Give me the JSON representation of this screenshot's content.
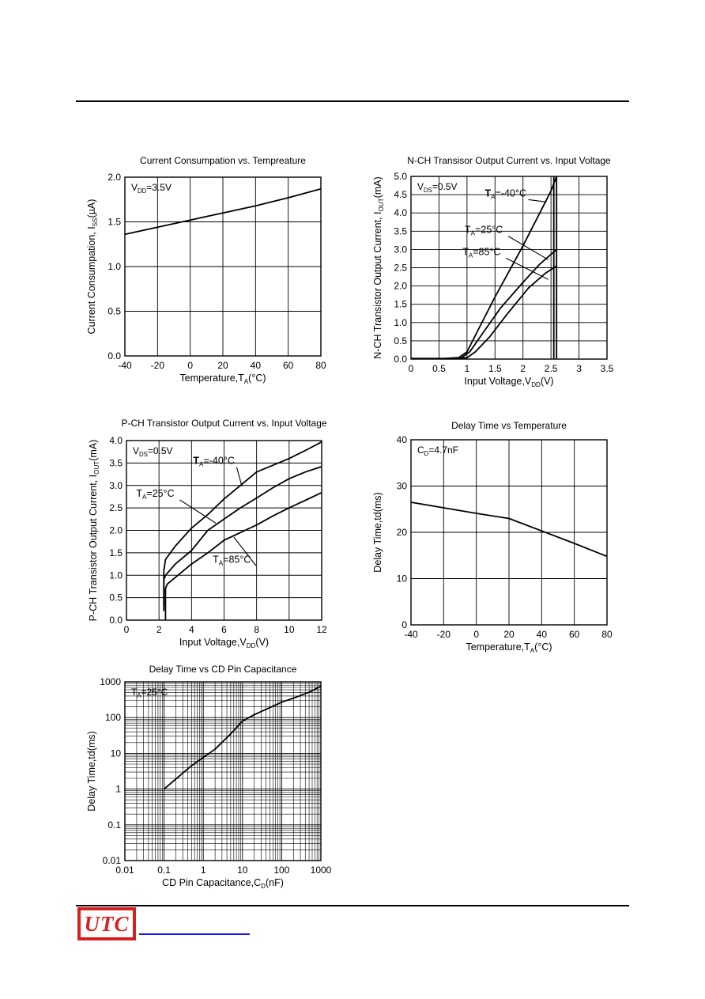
{
  "logo": {
    "text": "UTC"
  },
  "chart_data": [
    {
      "id": "consumption",
      "type": "line",
      "title": "Current Consumpation vs. Tempreature",
      "xlabel": "Temperature,Tₐ(°C)",
      "xlabel_parts": [
        "Temperature,T",
        "A",
        "(°C)"
      ],
      "ylabel_parts": [
        "Current Consumpation, I",
        "SS",
        "(µA)"
      ],
      "xlim": [
        -40,
        80
      ],
      "ylim": [
        0,
        2.0
      ],
      "xticks": [
        -40,
        -20,
        0,
        20,
        40,
        60,
        80
      ],
      "xtick_labels": [
        "-40",
        "-20",
        "0",
        "20",
        "40",
        "60",
        "80"
      ],
      "yticks": [
        0,
        0.5,
        1.0,
        1.5,
        2.0
      ],
      "ytick_labels": [
        "0.0",
        "0.5",
        "1.0",
        "1.5",
        "2.0"
      ],
      "grid": true,
      "condition_parts": [
        "V",
        "DD",
        "=3.5V"
      ],
      "series": [
        {
          "x": [
            -40,
            -20,
            0,
            20,
            40,
            60,
            80
          ],
          "y": [
            1.36,
            1.44,
            1.52,
            1.6,
            1.68,
            1.77,
            1.87
          ]
        }
      ],
      "labels": []
    },
    {
      "id": "nch",
      "type": "line",
      "title": "N-CH Transisor Output Current vs. Input Voltage",
      "xlabel_parts": [
        "Input Voltage,V",
        "DD",
        "(V)"
      ],
      "ylabel_parts": [
        "N-CH Transistor Output Current, I",
        "OUT",
        "(mA)"
      ],
      "xlim": [
        0,
        3.5
      ],
      "ylim": [
        0,
        5.0
      ],
      "xticks": [
        0,
        0.5,
        1,
        1.5,
        2,
        2.5,
        3,
        3.5
      ],
      "xtick_labels": [
        "0",
        "0.5",
        "1",
        "1.5",
        "2",
        "2.5",
        "3",
        "3.5"
      ],
      "yticks": [
        0,
        0.5,
        1.0,
        1.5,
        2.0,
        2.5,
        3.0,
        3.5,
        4.0,
        4.5,
        5.0
      ],
      "ytick_labels": [
        "0.0",
        "0.5",
        "1.0",
        "1.5",
        "2.0",
        "2.5",
        "3.0",
        "3.5",
        "4.0",
        "4.5",
        "5.0"
      ],
      "grid": true,
      "condition_parts": [
        "V",
        "DS",
        "=0.5V"
      ],
      "series": [
        {
          "x": [
            0,
            0.6,
            0.85,
            1.0,
            1.2,
            1.5,
            2.0,
            2.3,
            2.5,
            2.6
          ],
          "y": [
            0.02,
            0.02,
            0.04,
            0.2,
            0.8,
            1.7,
            3.1,
            4.0,
            4.6,
            5.0
          ]
        },
        {
          "x": [
            0.6,
            0.9,
            1.05,
            1.3,
            1.6,
            2.0,
            2.3,
            2.6
          ],
          "y": [
            0.01,
            0.04,
            0.2,
            0.75,
            1.4,
            2.1,
            2.6,
            3.0
          ]
        },
        {
          "x": [
            0.7,
            1.0,
            1.15,
            1.4,
            1.7,
            2.1,
            2.4,
            2.6
          ],
          "y": [
            0.01,
            0.04,
            0.2,
            0.6,
            1.2,
            1.95,
            2.35,
            2.55
          ]
        },
        {
          "x": [
            2.55,
            2.55
          ],
          "y": [
            0,
            5.0
          ]
        },
        {
          "x": [
            2.6,
            2.6
          ],
          "y": [
            0,
            5.0
          ]
        }
      ],
      "labels": [
        {
          "parts": [
            "T",
            "A",
            "=-40°C"
          ],
          "bold": true,
          "x": 2.42,
          "y": 4.3,
          "tx": 1.32,
          "ty": 4.45
        },
        {
          "parts": [
            "T",
            "A",
            "=25°C"
          ],
          "bold": false,
          "x": 2.45,
          "y": 2.72,
          "tx": 0.96,
          "ty": 3.45
        },
        {
          "parts": [
            "T",
            "A",
            "=85°C"
          ],
          "bold": false,
          "x": 2.45,
          "y": 2.18,
          "tx": 0.92,
          "ty": 2.85
        }
      ]
    },
    {
      "id": "pch",
      "type": "line",
      "title": "P-CH Transistor Output Current vs. Input Voltage",
      "xlabel_parts": [
        "Input Voltage,V",
        "DD",
        "(V)"
      ],
      "ylabel_parts": [
        "P-CH Transistor Output Current, I",
        "OUT",
        "(mA)"
      ],
      "xlim": [
        0,
        12
      ],
      "ylim": [
        0,
        4.0
      ],
      "xticks": [
        0,
        2,
        4,
        6,
        8,
        10,
        12
      ],
      "xtick_labels": [
        "0",
        "2",
        "4",
        "6",
        "8",
        "10",
        "12"
      ],
      "yticks": [
        0,
        0.5,
        1.0,
        1.5,
        2.0,
        2.5,
        3.0,
        3.5,
        4.0
      ],
      "ytick_labels": [
        "0.0",
        "0.5",
        "1.0",
        "1.5",
        "2.0",
        "2.5",
        "3.0",
        "3.5",
        "4.0"
      ],
      "grid": true,
      "condition_parts": [
        "V",
        "DS",
        "=0.5V"
      ],
      "series": [
        {
          "x": [
            2.3,
            2.3,
            2.4,
            3,
            4,
            5,
            6,
            7,
            8,
            9,
            10,
            11,
            12
          ],
          "y": [
            0.3,
            1.1,
            1.35,
            1.65,
            2.05,
            2.35,
            2.7,
            3.0,
            3.3,
            3.45,
            3.6,
            3.78,
            3.97
          ]
        },
        {
          "x": [
            2.3,
            2.3,
            2.4,
            3,
            4,
            5,
            6,
            7,
            8,
            9,
            10,
            11,
            12
          ],
          "y": [
            0.2,
            0.9,
            1.0,
            1.25,
            1.55,
            2.0,
            2.25,
            2.5,
            2.72,
            2.95,
            3.15,
            3.3,
            3.42
          ]
        },
        {
          "x": [
            2.4,
            2.4,
            2.5,
            3,
            4,
            5,
            6,
            7,
            8,
            9,
            10,
            11,
            12
          ],
          "y": [
            0.0,
            0.7,
            0.8,
            0.95,
            1.25,
            1.5,
            1.78,
            1.95,
            2.12,
            2.32,
            2.5,
            2.67,
            2.84
          ]
        }
      ],
      "labels": [
        {
          "parts": [
            "T",
            "A",
            "=-40°C"
          ],
          "bold": true,
          "x": 7.1,
          "y": 2.98,
          "tx": 4.1,
          "ty": 3.48
        },
        {
          "parts": [
            "T",
            "A",
            "=25°C"
          ],
          "bold": false,
          "x": 5.5,
          "y": 2.16,
          "tx": 0.6,
          "ty": 2.75
        },
        {
          "parts": [
            "T",
            "A",
            "=85°C"
          ],
          "bold": false,
          "x": 6.6,
          "y": 1.85,
          "tx": 5.3,
          "ty": 1.28
        }
      ]
    },
    {
      "id": "delaytemp",
      "type": "line",
      "title": "Delay Time vs Temperature",
      "xlabel_parts": [
        "Temperature,T",
        "A",
        "(°C)"
      ],
      "ylabel_parts": [
        "Delay Time,td(ms)",
        "",
        ""
      ],
      "xlim": [
        -40,
        80
      ],
      "ylim": [
        0,
        40
      ],
      "xticks": [
        -40,
        -20,
        0,
        20,
        40,
        60,
        80
      ],
      "xtick_labels": [
        "-40",
        "-20",
        "0",
        "20",
        "40",
        "60",
        "80"
      ],
      "yticks": [
        0,
        10,
        20,
        30,
        40
      ],
      "ytick_labels": [
        "0",
        "10",
        "20",
        "30",
        "40"
      ],
      "grid": true,
      "condition_parts": [
        "C",
        "D",
        "=4.7nF"
      ],
      "series": [
        {
          "x": [
            -40,
            -20,
            0,
            20,
            40,
            60,
            80
          ],
          "y": [
            26.5,
            25.3,
            24.1,
            23.0,
            20.3,
            17.6,
            14.8
          ]
        }
      ],
      "labels": []
    },
    {
      "id": "delaycap",
      "type": "line",
      "title": "Delay Time vs CD Pin Capacitance",
      "xlabel_parts": [
        "CD Pin Capacitance,C",
        "D",
        "(nF)"
      ],
      "ylabel_parts": [
        "Delay Time,td(ms)",
        "",
        ""
      ],
      "xscale": "log",
      "yscale": "log",
      "xlim": [
        0.01,
        1000
      ],
      "ylim": [
        0.01,
        1000
      ],
      "xticks": [
        0.01,
        0.1,
        1,
        10,
        100,
        1000
      ],
      "xtick_labels": [
        "0.01",
        "0.1",
        "1",
        "10",
        "100",
        "1000"
      ],
      "yticks": [
        0.01,
        0.1,
        1,
        10,
        100,
        1000
      ],
      "ytick_labels": [
        "0.01",
        "0.1",
        "1",
        "10",
        "100",
        "1000"
      ],
      "grid": true,
      "condition_parts": [
        "T",
        "A",
        "=25°C"
      ],
      "series": [
        {
          "x": [
            0.1,
            0.5,
            2,
            5,
            10,
            20,
            50,
            100,
            200,
            500,
            1000
          ],
          "y": [
            1.0,
            4.5,
            13,
            35,
            80,
            120,
            190,
            270,
            350,
            510,
            750
          ]
        }
      ],
      "labels": []
    }
  ]
}
